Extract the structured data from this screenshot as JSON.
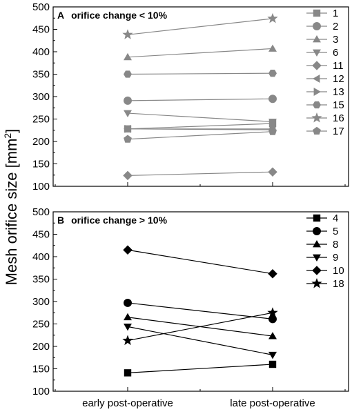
{
  "chart_data": [
    {
      "type": "line",
      "panel_label": "A",
      "title": "orifice change < 10%",
      "categories": [
        "early post-operative",
        "late post-operative"
      ],
      "ylim": [
        100,
        500
      ],
      "yticks": [
        100,
        150,
        200,
        250,
        300,
        350,
        400,
        450,
        500
      ],
      "color": "#888888",
      "legend_position": "right",
      "series": [
        {
          "name": "1",
          "marker": "square",
          "values": [
            228,
            240
          ]
        },
        {
          "name": "2",
          "marker": "circle",
          "values": [
            291,
            295
          ]
        },
        {
          "name": "3",
          "marker": "triangle-up",
          "values": [
            388,
            407
          ]
        },
        {
          "name": "6",
          "marker": "triangle-down",
          "values": [
            263,
            244
          ]
        },
        {
          "name": "11",
          "marker": "diamond",
          "values": [
            124,
            132
          ]
        },
        {
          "name": "12",
          "marker": "triangle-left",
          "values": [
            228,
            228
          ]
        },
        {
          "name": "13",
          "marker": "triangle-right",
          "values": [
            228,
            226
          ]
        },
        {
          "name": "15",
          "marker": "hexagon",
          "values": [
            350,
            352
          ]
        },
        {
          "name": "16",
          "marker": "star",
          "values": [
            438,
            474
          ]
        },
        {
          "name": "17",
          "marker": "pentagon",
          "values": [
            205,
            222
          ]
        }
      ]
    },
    {
      "type": "line",
      "panel_label": "B",
      "title": "orifice change > 10%",
      "categories": [
        "early post-operative",
        "late post-operative"
      ],
      "ylim": [
        100,
        500
      ],
      "yticks": [
        100,
        150,
        200,
        250,
        300,
        350,
        400,
        450,
        500
      ],
      "color": "#000000",
      "legend_position": "right",
      "series": [
        {
          "name": "4",
          "marker": "square",
          "values": [
            141,
            160
          ]
        },
        {
          "name": "5",
          "marker": "circle",
          "values": [
            297,
            261
          ]
        },
        {
          "name": "8",
          "marker": "triangle-up",
          "values": [
            265,
            223
          ]
        },
        {
          "name": "9",
          "marker": "triangle-down",
          "values": [
            244,
            181
          ]
        },
        {
          "name": "10",
          "marker": "diamond",
          "values": [
            415,
            362
          ]
        },
        {
          "name": "18",
          "marker": "star",
          "values": [
            213,
            275
          ]
        }
      ]
    }
  ],
  "shared_ylabel": "Mesh orifice size [mm",
  "shared_ylabel_sup": "2",
  "shared_ylabel_end": "]"
}
